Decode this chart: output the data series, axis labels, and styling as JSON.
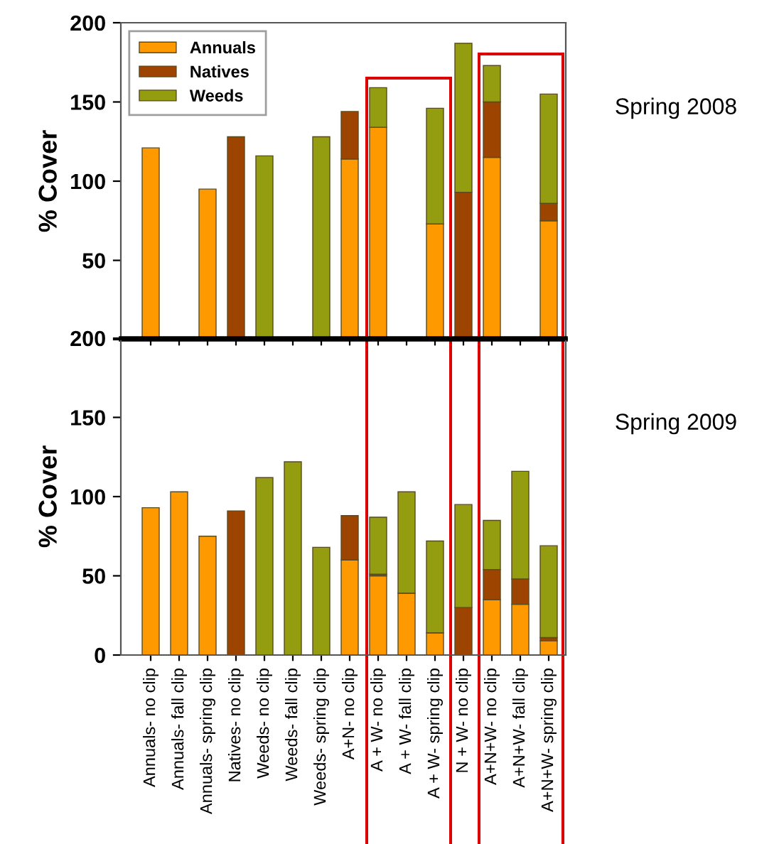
{
  "chart_data": [
    {
      "type": "bar",
      "stacked": true,
      "ylabel": "% Cover",
      "categories": [
        null,
        null,
        null,
        null,
        null,
        null,
        null,
        null,
        null,
        null,
        null,
        null,
        null,
        null,
        null
      ],
      "series": [
        {
          "name": "Annuals",
          "color": "#ff9900",
          "values": [
            121,
            null,
            95,
            null,
            null,
            null,
            null,
            114,
            134,
            null,
            73,
            null,
            115,
            null,
            75
          ]
        },
        {
          "name": "Natives",
          "color": "#9c4400",
          "values": [
            null,
            null,
            null,
            128,
            null,
            null,
            null,
            30,
            null,
            null,
            null,
            93,
            35,
            null,
            11
          ]
        },
        {
          "name": "Weeds",
          "color": "#949c10",
          "values": [
            null,
            null,
            null,
            null,
            116,
            null,
            128,
            null,
            25,
            null,
            73,
            94,
            23,
            null,
            69
          ]
        }
      ],
      "ylim": [
        0,
        200
      ],
      "yticks": [
        {
          "value": 0,
          "label": null
        },
        50,
        100,
        150,
        200
      ],
      "tick_labels": "y",
      "legend": "top left",
      "grid": false,
      "annotations": [
        "Spring 2008"
      ]
    },
    {
      "type": "bar",
      "stacked": true,
      "ylabel": "% Cover",
      "categories": [
        "Annuals- no clip",
        "Annuals- fall clip",
        "Annuals- spring clip",
        "Natives- no clip",
        "Weeds- no clip",
        "Weeds- fall clip",
        "Weeds- spring clip",
        "A+N- no clip",
        "A + W- no clip",
        "A + W- fall clip",
        "A + W- spring clip",
        "N + W- no clip",
        "A+N+W- no clip",
        "A+N+W- fall clip",
        "A+N+W- spring clip"
      ],
      "series": [
        {
          "color": "#ff9900",
          "values": [
            93,
            103,
            75,
            null,
            null,
            null,
            null,
            60,
            50,
            39,
            14,
            null,
            35,
            32,
            9
          ]
        },
        {
          "color": "#9c4400",
          "values": [
            null,
            null,
            null,
            91,
            null,
            null,
            null,
            28,
            1,
            null,
            null,
            30,
            19,
            16,
            2
          ]
        },
        {
          "color": "#949c10",
          "values": [
            null,
            null,
            null,
            null,
            112,
            122,
            68,
            null,
            36,
            64,
            58,
            65,
            31,
            68,
            58
          ]
        }
      ],
      "ylim": [
        0,
        200
      ],
      "yticks": [
        0,
        50,
        100,
        150,
        200
      ],
      "grid": false,
      "annotations": [
        "Spring 2009"
      ]
    }
  ]
}
